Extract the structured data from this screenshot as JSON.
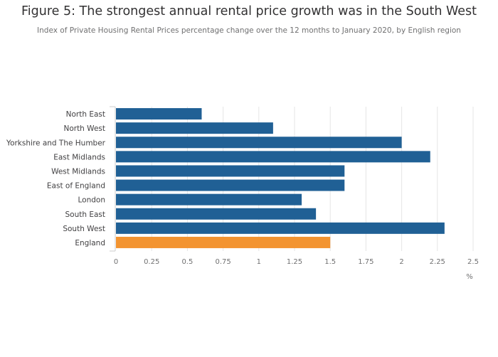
{
  "title": "Figure 5: The strongest annual rental price growth was in the South West",
  "subtitle": "Index of Private Housing Rental Prices percentage change over the 12 months to January 2020, by English region",
  "colors": {
    "default_bar": "#206095",
    "highlight_bar": "#f39431",
    "grid": "#e5e5e5",
    "axis": "#cccccc"
  },
  "chart_data": {
    "type": "bar",
    "orientation": "horizontal",
    "title": "Figure 5: The strongest annual rental price growth was in the South West",
    "subtitle": "Index of Private Housing Rental Prices percentage change over the 12 months to January 2020, by English region",
    "xlabel": "%",
    "ylabel": "",
    "categories": [
      "North East",
      "North West",
      "Yorkshire and The Humber",
      "East Midlands",
      "West Midlands",
      "East of England",
      "London",
      "South East",
      "South West",
      "England"
    ],
    "values": [
      0.6,
      1.1,
      2.0,
      2.2,
      1.6,
      1.6,
      1.3,
      1.4,
      2.3,
      1.5
    ],
    "highlight": [
      "England"
    ],
    "xlim": [
      0,
      2.5
    ],
    "xticks": [
      "0",
      "0.25",
      "0.5",
      "0.75",
      "1",
      "1.25",
      "1.5",
      "1.75",
      "2",
      "2.25",
      "2.5"
    ],
    "grid": true
  }
}
